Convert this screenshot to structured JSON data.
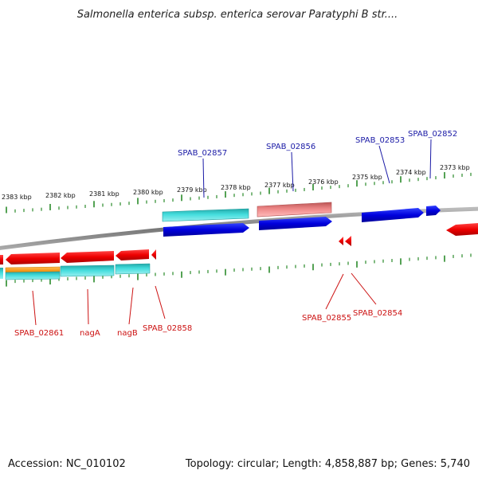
{
  "title": "Salmonella enterica subsp. enterica serovar Paratyphi B str....",
  "footer": {
    "accession": "Accession: NC_010102",
    "topology": "Topology: circular; Length: 4,858,887 bp; Genes: 5,740"
  },
  "kbp_labels": [
    "2383 kbp",
    "2382 kbp",
    "2381 kbp",
    "2380 kbp",
    "2379 kbp",
    "2378 kbp",
    "2377 kbp",
    "2376 kbp",
    "2375 kbp",
    "2374 kbp",
    "2373 kbp"
  ],
  "gene_labels_top": [
    "SPAB_02857",
    "SPAB_02856",
    "SPAB_02853",
    "SPAB_02852"
  ],
  "gene_labels_bottom": [
    "SPAB_02861",
    "nagA",
    "nagB",
    "SPAB_02858",
    "SPAB_02855",
    "SPAB_02854"
  ],
  "colors": {
    "forward_gene": "#0000dd",
    "reverse_gene": "#ee0000",
    "cyan_feature": "#33cccc",
    "pink_feature": "#ee8888",
    "orange_feature": "#ff9922",
    "tick_green": "#2a8a2a",
    "backbone": "#888888"
  }
}
